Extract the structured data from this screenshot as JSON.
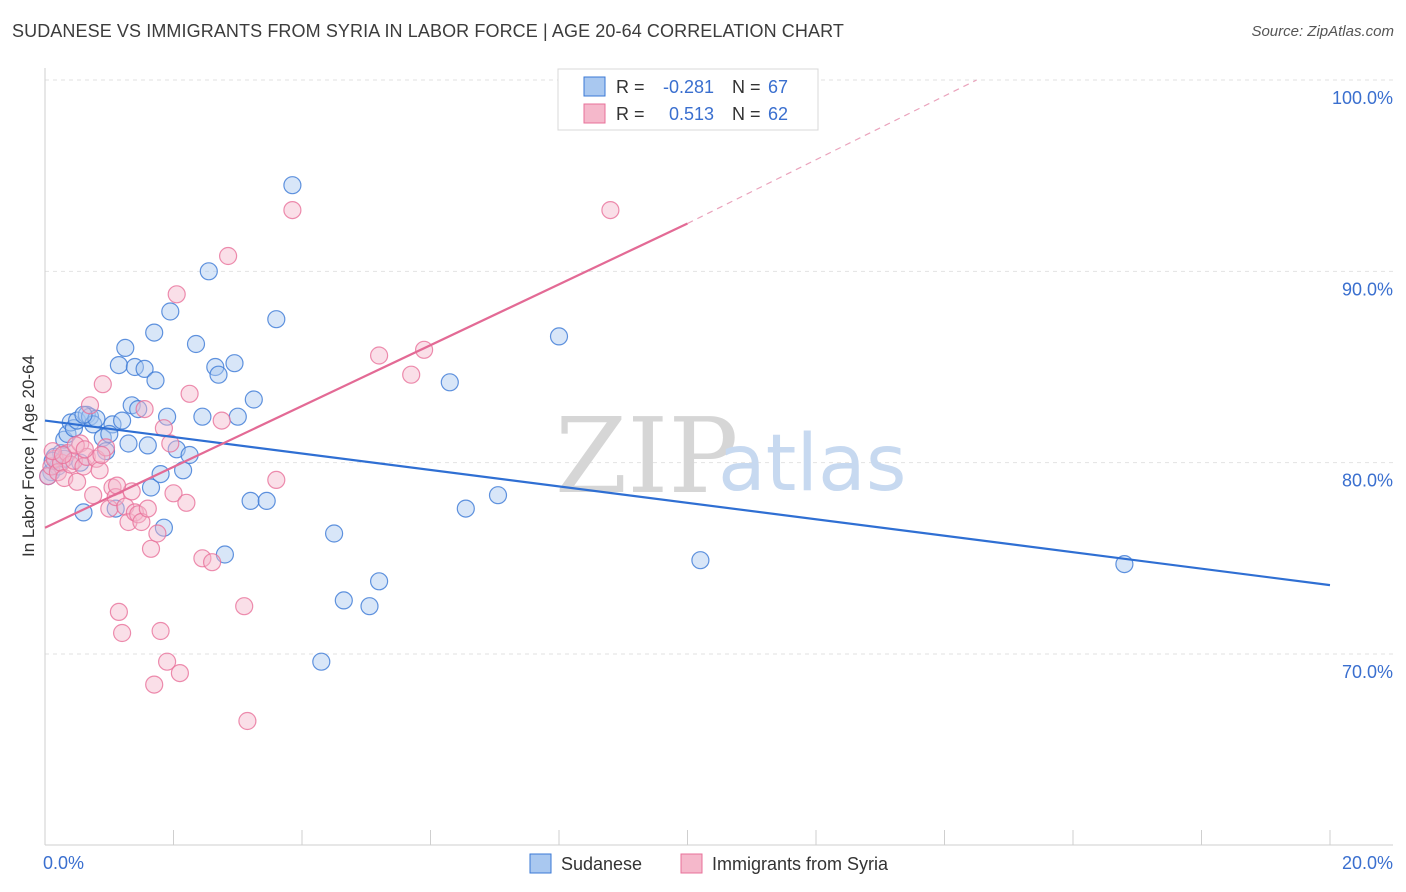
{
  "title": "SUDANESE VS IMMIGRANTS FROM SYRIA IN LABOR FORCE | AGE 20-64 CORRELATION CHART",
  "source": "Source: ZipAtlas.com",
  "watermark": {
    "zip": "ZIP",
    "atlas": "atlas"
  },
  "colors": {
    "blue": "#3a78d6",
    "blue_fill": "#a9c8f0",
    "pink": "#e8709a",
    "pink_fill": "#f5b8cb",
    "axis_label": "#3a6fcf"
  },
  "chart_data": {
    "type": "scatter",
    "title": "SUDANESE VS IMMIGRANTS FROM SYRIA IN LABOR FORCE | AGE 20-64 CORRELATION CHART",
    "ylabel": "In Labor Force | Age 20-64",
    "xlim": [
      0.0,
      20.0
    ],
    "ylim": [
      60.0,
      103.0
    ],
    "x_tick_labels": {
      "left": "0.0%",
      "right": "20.0%"
    },
    "y_ticks": [
      {
        "value": 100,
        "label": "100.0%"
      },
      {
        "value": 90,
        "label": "90.0%"
      },
      {
        "value": 80,
        "label": "80.0%"
      },
      {
        "value": 70,
        "label": "70.0%"
      }
    ],
    "legend": {
      "rows": [
        {
          "r_label": "R =",
          "r_value": "-0.281",
          "n_label": "N =",
          "n_value": "67"
        },
        {
          "r_label": "R =",
          "r_value": "0.513",
          "n_label": "N =",
          "n_value": "62"
        }
      ]
    },
    "series": [
      {
        "name": "Sudanese",
        "color": "#3a78d6",
        "trend": {
          "x0": 0.0,
          "y0": 82.2,
          "x1": 20.0,
          "y1": 73.6
        },
        "points": [
          [
            0.1,
            79.5
          ],
          [
            0.15,
            80.3
          ],
          [
            0.2,
            79.8
          ],
          [
            0.25,
            80.5
          ],
          [
            0.3,
            81.2
          ],
          [
            0.35,
            81.5
          ],
          [
            0.4,
            82.1
          ],
          [
            0.45,
            81.8
          ],
          [
            0.5,
            82.2
          ],
          [
            0.55,
            80.0
          ],
          [
            0.6,
            77.4
          ],
          [
            0.65,
            82.5
          ],
          [
            0.7,
            82.4
          ],
          [
            0.75,
            82.0
          ],
          [
            0.8,
            82.3
          ],
          [
            0.9,
            81.3
          ],
          [
            0.95,
            80.6
          ],
          [
            1.05,
            82.0
          ],
          [
            1.1,
            77.6
          ],
          [
            1.15,
            85.1
          ],
          [
            1.2,
            82.2
          ],
          [
            1.25,
            86.0
          ],
          [
            1.3,
            81.0
          ],
          [
            1.35,
            83.0
          ],
          [
            1.4,
            85.0
          ],
          [
            1.45,
            82.8
          ],
          [
            1.55,
            84.9
          ],
          [
            1.6,
            80.9
          ],
          [
            1.65,
            78.7
          ],
          [
            1.7,
            86.8
          ],
          [
            1.72,
            84.3
          ],
          [
            1.8,
            79.4
          ],
          [
            1.85,
            76.6
          ],
          [
            1.9,
            82.4
          ],
          [
            1.95,
            87.9
          ],
          [
            2.05,
            80.7
          ],
          [
            2.15,
            79.6
          ],
          [
            2.25,
            80.4
          ],
          [
            2.35,
            86.2
          ],
          [
            2.45,
            82.4
          ],
          [
            2.55,
            90.0
          ],
          [
            2.65,
            85.0
          ],
          [
            2.7,
            84.6
          ],
          [
            2.8,
            75.2
          ],
          [
            2.95,
            85.2
          ],
          [
            3.0,
            82.4
          ],
          [
            3.2,
            78.0
          ],
          [
            3.25,
            83.3
          ],
          [
            3.45,
            78.0
          ],
          [
            3.6,
            87.5
          ],
          [
            3.85,
            94.5
          ],
          [
            4.3,
            69.6
          ],
          [
            4.5,
            76.3
          ],
          [
            4.65,
            72.8
          ],
          [
            5.05,
            72.5
          ],
          [
            5.2,
            73.8
          ],
          [
            6.3,
            84.2
          ],
          [
            6.55,
            77.6
          ],
          [
            7.05,
            78.3
          ],
          [
            8.0,
            86.6
          ],
          [
            10.2,
            74.9
          ],
          [
            16.8,
            74.7
          ],
          [
            0.05,
            79.3
          ],
          [
            0.12,
            80.1
          ],
          [
            0.3,
            80.2
          ],
          [
            0.6,
            82.5
          ],
          [
            1.0,
            81.5
          ]
        ]
      },
      {
        "name": "Immigrants from Syria",
        "color": "#e8709a",
        "trend": {
          "x0": 0.0,
          "y0": 76.6,
          "x1": 10.0,
          "y1": 92.5,
          "dash_x1": 14.5,
          "dash_y1": 100.0
        },
        "points": [
          [
            0.05,
            79.3
          ],
          [
            0.1,
            79.8
          ],
          [
            0.15,
            80.2
          ],
          [
            0.2,
            79.5
          ],
          [
            0.25,
            80.0
          ],
          [
            0.3,
            79.2
          ],
          [
            0.35,
            80.5
          ],
          [
            0.4,
            79.9
          ],
          [
            0.45,
            80.1
          ],
          [
            0.5,
            79.0
          ],
          [
            0.55,
            81.0
          ],
          [
            0.6,
            79.8
          ],
          [
            0.65,
            80.3
          ],
          [
            0.7,
            83.0
          ],
          [
            0.75,
            78.3
          ],
          [
            0.8,
            80.2
          ],
          [
            0.85,
            79.6
          ],
          [
            0.9,
            84.1
          ],
          [
            0.95,
            80.8
          ],
          [
            1.0,
            77.6
          ],
          [
            1.05,
            78.7
          ],
          [
            1.1,
            78.2
          ],
          [
            1.15,
            72.2
          ],
          [
            1.2,
            71.1
          ],
          [
            1.25,
            77.7
          ],
          [
            1.3,
            76.9
          ],
          [
            1.35,
            78.5
          ],
          [
            1.4,
            77.4
          ],
          [
            1.45,
            77.3
          ],
          [
            1.5,
            76.9
          ],
          [
            1.55,
            82.8
          ],
          [
            1.6,
            77.6
          ],
          [
            1.65,
            75.5
          ],
          [
            1.7,
            68.4
          ],
          [
            1.75,
            76.3
          ],
          [
            1.8,
            71.2
          ],
          [
            1.85,
            81.8
          ],
          [
            1.9,
            69.6
          ],
          [
            1.95,
            81.0
          ],
          [
            2.0,
            78.4
          ],
          [
            2.05,
            88.8
          ],
          [
            2.1,
            69.0
          ],
          [
            2.2,
            77.9
          ],
          [
            2.25,
            83.6
          ],
          [
            2.45,
            75.0
          ],
          [
            2.6,
            74.8
          ],
          [
            2.75,
            82.2
          ],
          [
            2.85,
            90.8
          ],
          [
            3.1,
            72.5
          ],
          [
            3.15,
            66.5
          ],
          [
            3.6,
            79.1
          ],
          [
            3.85,
            93.2
          ],
          [
            5.2,
            85.6
          ],
          [
            5.7,
            84.6
          ],
          [
            5.9,
            85.9
          ],
          [
            8.8,
            93.2
          ],
          [
            0.12,
            80.6
          ],
          [
            0.28,
            80.4
          ],
          [
            0.48,
            80.9
          ],
          [
            0.62,
            80.7
          ],
          [
            0.88,
            80.4
          ],
          [
            1.12,
            78.8
          ]
        ]
      }
    ],
    "bottom_legend": [
      "Sudanese",
      "Immigrants from Syria"
    ]
  }
}
